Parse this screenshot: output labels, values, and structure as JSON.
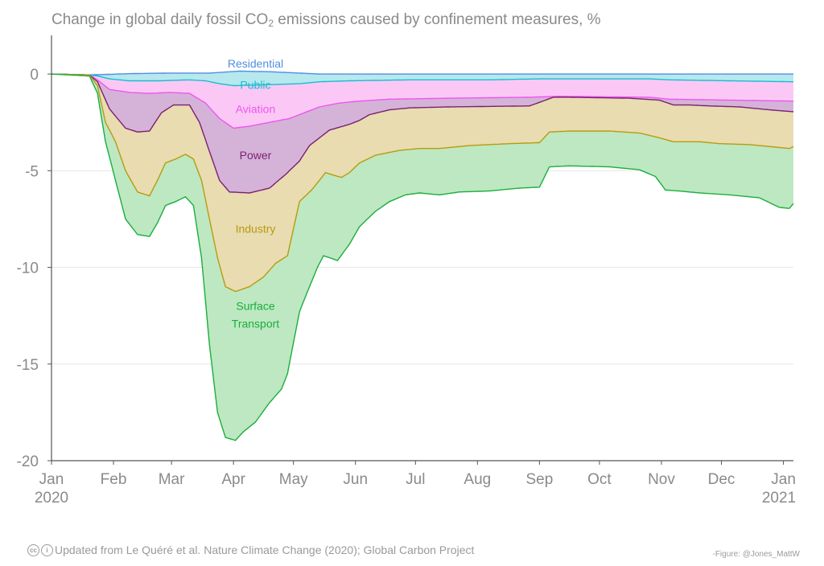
{
  "title": {
    "before": "Change in global daily fossil CO",
    "sub": "2",
    "after": " emissions caused by confinement measures, %"
  },
  "footer": {
    "credit": "Updated from Le Quéré et al. Nature Climate Change (2020); Global Carbon Project",
    "cc_icon": "cc-icon",
    "by_icon": "by-icon",
    "figure_credit": "-Figure: @Jones_MattW"
  },
  "chart_data": {
    "type": "area",
    "stacked": true,
    "ylim": [
      -20,
      2
    ],
    "yticks": [
      0,
      -5,
      -10,
      -15,
      -20
    ],
    "ytick_labels": [
      "0",
      "-5",
      "-10",
      "-15",
      "-20"
    ],
    "xlim": [
      1,
      372
    ],
    "xticks": [
      {
        "day": 1,
        "label": "Jan",
        "year": "2020"
      },
      {
        "day": 32,
        "label": "Feb"
      },
      {
        "day": 61,
        "label": "Mar"
      },
      {
        "day": 92,
        "label": "Apr"
      },
      {
        "day": 122,
        "label": "May"
      },
      {
        "day": 153,
        "label": "Jun"
      },
      {
        "day": 183,
        "label": "Jul"
      },
      {
        "day": 214,
        "label": "Aug"
      },
      {
        "day": 245,
        "label": "Sep"
      },
      {
        "day": 275,
        "label": "Oct"
      },
      {
        "day": 306,
        "label": "Nov"
      },
      {
        "day": 336,
        "label": "Dec"
      },
      {
        "day": 367,
        "label": "Jan",
        "year": "2021"
      }
    ],
    "grid": true,
    "x_unit": "day of year 2020",
    "series": [
      {
        "name": "Residential",
        "color": "#4f8ee0",
        "fill": "#cfe0f7",
        "points": [
          [
            1,
            0
          ],
          [
            20,
            -0.05
          ],
          [
            40,
            0.02
          ],
          [
            60,
            0.05
          ],
          [
            80,
            0.05
          ],
          [
            95,
            0.15
          ],
          [
            110,
            0.12
          ],
          [
            125,
            0.05
          ],
          [
            135,
            0
          ],
          [
            160,
            0
          ],
          [
            250,
            0
          ],
          [
            300,
            0
          ],
          [
            340,
            0
          ],
          [
            372,
            0
          ]
        ]
      },
      {
        "name": "Public",
        "color": "#17becf",
        "fill": "#b6e8ee",
        "points": [
          [
            1,
            0
          ],
          [
            20,
            -0.05
          ],
          [
            24,
            -0.1
          ],
          [
            30,
            -0.25
          ],
          [
            40,
            -0.35
          ],
          [
            55,
            -0.35
          ],
          [
            70,
            -0.3
          ],
          [
            78,
            -0.35
          ],
          [
            85,
            -0.5
          ],
          [
            92,
            -0.6
          ],
          [
            110,
            -0.55
          ],
          [
            125,
            -0.5
          ],
          [
            135,
            -0.4
          ],
          [
            150,
            -0.35
          ],
          [
            180,
            -0.3
          ],
          [
            220,
            -0.3
          ],
          [
            245,
            -0.25
          ],
          [
            300,
            -0.25
          ],
          [
            310,
            -0.3
          ],
          [
            340,
            -0.35
          ],
          [
            372,
            -0.4
          ]
        ]
      },
      {
        "name": "Aviation",
        "color": "#ef55ef",
        "fill": "#fbc8f6",
        "points": [
          [
            1,
            0
          ],
          [
            20,
            -0.05
          ],
          [
            24,
            -0.3
          ],
          [
            30,
            -0.8
          ],
          [
            40,
            -0.95
          ],
          [
            50,
            -1.0
          ],
          [
            60,
            -0.95
          ],
          [
            70,
            -1.0
          ],
          [
            78,
            -1.5
          ],
          [
            85,
            -2.3
          ],
          [
            92,
            -2.8
          ],
          [
            100,
            -2.7
          ],
          [
            110,
            -2.5
          ],
          [
            120,
            -2.3
          ],
          [
            125,
            -2.1
          ],
          [
            135,
            -1.7
          ],
          [
            145,
            -1.5
          ],
          [
            155,
            -1.4
          ],
          [
            170,
            -1.3
          ],
          [
            200,
            -1.25
          ],
          [
            240,
            -1.2
          ],
          [
            255,
            -1.15
          ],
          [
            300,
            -1.2
          ],
          [
            310,
            -1.3
          ],
          [
            340,
            -1.35
          ],
          [
            372,
            -1.4
          ]
        ]
      },
      {
        "name": "Power",
        "color": "#7a1f74",
        "fill": "#d5b3d8",
        "points": [
          [
            1,
            0
          ],
          [
            20,
            -0.05
          ],
          [
            24,
            -0.4
          ],
          [
            30,
            -1.8
          ],
          [
            38,
            -2.8
          ],
          [
            44,
            -3.0
          ],
          [
            50,
            -2.95
          ],
          [
            56,
            -2.0
          ],
          [
            62,
            -1.6
          ],
          [
            70,
            -1.6
          ],
          [
            75,
            -2.5
          ],
          [
            80,
            -4.0
          ],
          [
            85,
            -5.5
          ],
          [
            90,
            -6.1
          ],
          [
            100,
            -6.15
          ],
          [
            110,
            -5.9
          ],
          [
            118,
            -5.2
          ],
          [
            125,
            -4.5
          ],
          [
            130,
            -3.7
          ],
          [
            135,
            -3.3
          ],
          [
            140,
            -2.9
          ],
          [
            150,
            -2.6
          ],
          [
            155,
            -2.4
          ],
          [
            160,
            -2.1
          ],
          [
            170,
            -1.85
          ],
          [
            180,
            -1.75
          ],
          [
            200,
            -1.7
          ],
          [
            240,
            -1.65
          ],
          [
            252,
            -1.2
          ],
          [
            260,
            -1.2
          ],
          [
            290,
            -1.25
          ],
          [
            305,
            -1.35
          ],
          [
            312,
            -1.6
          ],
          [
            320,
            -1.6
          ],
          [
            330,
            -1.65
          ],
          [
            345,
            -1.7
          ],
          [
            360,
            -1.85
          ],
          [
            372,
            -1.95
          ]
        ]
      },
      {
        "name": "Industry",
        "color": "#b89b0f",
        "fill": "#e8dcb0",
        "points": [
          [
            1,
            0
          ],
          [
            20,
            -0.05
          ],
          [
            24,
            -0.6
          ],
          [
            28,
            -2.5
          ],
          [
            33,
            -3.5
          ],
          [
            38,
            -5.0
          ],
          [
            44,
            -6.1
          ],
          [
            50,
            -6.3
          ],
          [
            54,
            -5.5
          ],
          [
            58,
            -4.6
          ],
          [
            63,
            -4.4
          ],
          [
            68,
            -4.15
          ],
          [
            72,
            -4.4
          ],
          [
            76,
            -5.5
          ],
          [
            80,
            -7.5
          ],
          [
            84,
            -9.5
          ],
          [
            88,
            -11.0
          ],
          [
            93,
            -11.25
          ],
          [
            100,
            -11.0
          ],
          [
            107,
            -10.5
          ],
          [
            113,
            -9.8
          ],
          [
            119,
            -9.4
          ],
          [
            125,
            -6.6
          ],
          [
            131,
            -6.0
          ],
          [
            135,
            -5.5
          ],
          [
            138,
            -5.1
          ],
          [
            141,
            -5.2
          ],
          [
            146,
            -5.35
          ],
          [
            150,
            -5.1
          ],
          [
            155,
            -4.6
          ],
          [
            163,
            -4.2
          ],
          [
            175,
            -3.95
          ],
          [
            185,
            -3.85
          ],
          [
            195,
            -3.85
          ],
          [
            210,
            -3.7
          ],
          [
            230,
            -3.6
          ],
          [
            245,
            -3.55
          ],
          [
            250,
            -3.0
          ],
          [
            260,
            -2.95
          ],
          [
            280,
            -2.95
          ],
          [
            295,
            -3.05
          ],
          [
            305,
            -3.3
          ],
          [
            312,
            -3.5
          ],
          [
            325,
            -3.5
          ],
          [
            335,
            -3.6
          ],
          [
            350,
            -3.65
          ],
          [
            365,
            -3.8
          ],
          [
            370,
            -3.85
          ],
          [
            372,
            -3.75
          ]
        ]
      },
      {
        "name": "Surface Transport",
        "color": "#1aae3c",
        "fill": "#bde8c2",
        "points": [
          [
            1,
            0
          ],
          [
            20,
            -0.1
          ],
          [
            24,
            -1.0
          ],
          [
            28,
            -3.5
          ],
          [
            33,
            -5.5
          ],
          [
            38,
            -7.5
          ],
          [
            44,
            -8.3
          ],
          [
            50,
            -8.4
          ],
          [
            54,
            -7.7
          ],
          [
            58,
            -6.8
          ],
          [
            63,
            -6.6
          ],
          [
            68,
            -6.35
          ],
          [
            72,
            -6.8
          ],
          [
            76,
            -9.5
          ],
          [
            80,
            -14.0
          ],
          [
            84,
            -17.5
          ],
          [
            88,
            -18.8
          ],
          [
            93,
            -18.95
          ],
          [
            97,
            -18.5
          ],
          [
            103,
            -18.0
          ],
          [
            110,
            -17.0
          ],
          [
            116,
            -16.3
          ],
          [
            119,
            -15.5
          ],
          [
            125,
            -12.3
          ],
          [
            130,
            -11.0
          ],
          [
            134,
            -10.0
          ],
          [
            137,
            -9.4
          ],
          [
            140,
            -9.5
          ],
          [
            144,
            -9.65
          ],
          [
            150,
            -8.8
          ],
          [
            155,
            -7.9
          ],
          [
            163,
            -7.1
          ],
          [
            170,
            -6.6
          ],
          [
            178,
            -6.25
          ],
          [
            185,
            -6.15
          ],
          [
            195,
            -6.25
          ],
          [
            205,
            -6.1
          ],
          [
            220,
            -6.05
          ],
          [
            235,
            -5.9
          ],
          [
            245,
            -5.85
          ],
          [
            250,
            -4.8
          ],
          [
            260,
            -4.75
          ],
          [
            280,
            -4.8
          ],
          [
            295,
            -4.95
          ],
          [
            303,
            -5.3
          ],
          [
            308,
            -6.0
          ],
          [
            315,
            -6.05
          ],
          [
            325,
            -6.15
          ],
          [
            340,
            -6.25
          ],
          [
            355,
            -6.4
          ],
          [
            365,
            -6.9
          ],
          [
            370,
            -6.95
          ],
          [
            372,
            -6.7
          ]
        ]
      }
    ],
    "labels": [
      {
        "series": "Residential",
        "text": "Residential",
        "day": 103,
        "y": 0.55
      },
      {
        "series": "Public",
        "text": "Public",
        "day": 103,
        "y": -0.55
      },
      {
        "series": "Aviation",
        "text": "Aviation",
        "day": 103,
        "y": -1.8
      },
      {
        "series": "Power",
        "text": "Power",
        "day": 103,
        "y": -4.2
      },
      {
        "series": "Industry",
        "text": "Industry",
        "day": 103,
        "y": -8.0
      },
      {
        "series": "Surface Transport",
        "text": "Surface",
        "day": 103,
        "y": -12.0
      },
      {
        "series": "Surface Transport",
        "text": "Transport",
        "day": 103,
        "y": -12.9
      }
    ]
  }
}
